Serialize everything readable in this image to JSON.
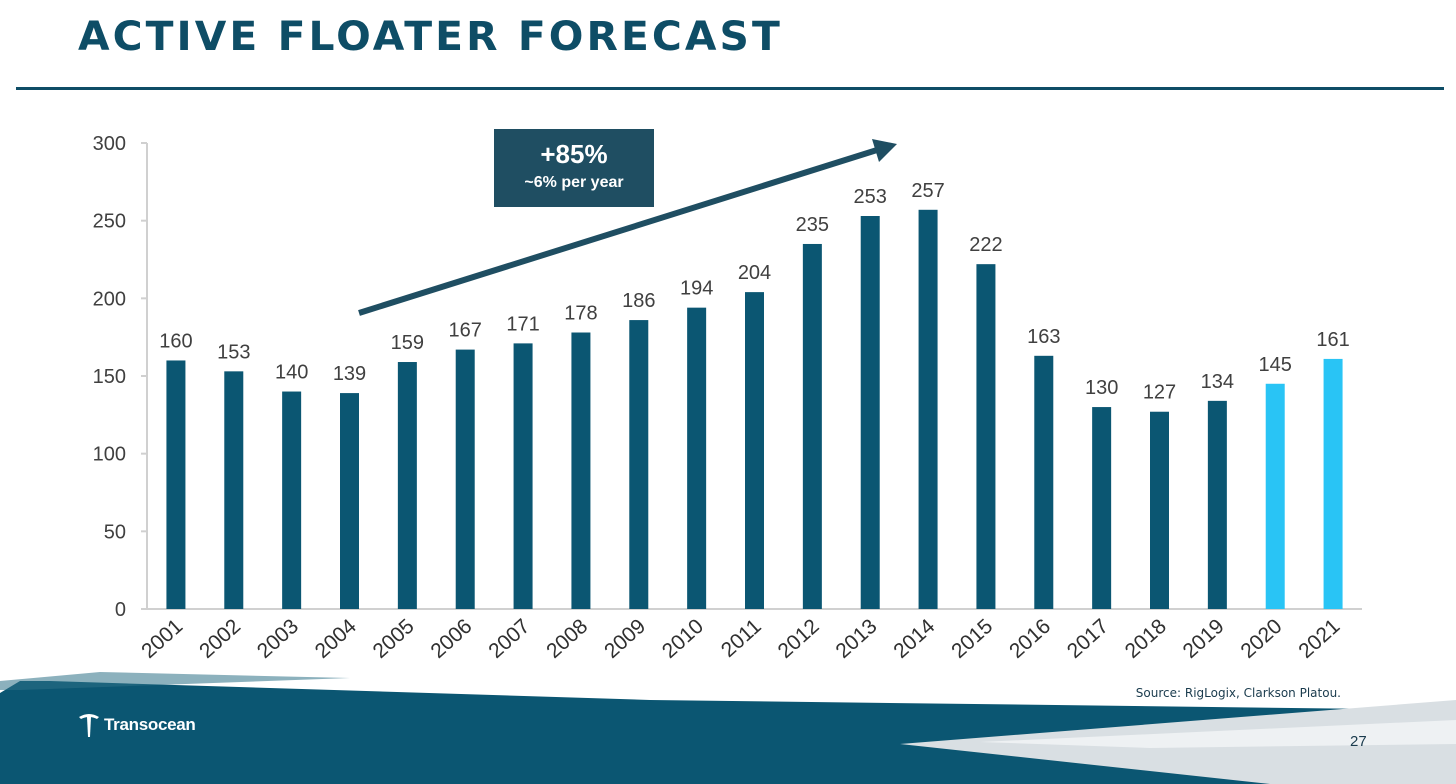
{
  "title": "ACTIVE FLOATER FORECAST",
  "callout": {
    "big": "+85%",
    "small": "~6%  per year"
  },
  "source": "Source: RigLogix, Clarkson Platou.",
  "page_number": "27",
  "logo_text": "Transocean",
  "colors": {
    "bar": "#0b5672",
    "forecast": "#29c4f5",
    "title": "#0e4d66",
    "footer": "#0b5672"
  },
  "chart_data": {
    "type": "bar",
    "categories": [
      "2001",
      "2002",
      "2003",
      "2004",
      "2005",
      "2006",
      "2007",
      "2008",
      "2009",
      "2010",
      "2011",
      "2012",
      "2013",
      "2014",
      "2015",
      "2016",
      "2017",
      "2018",
      "2019",
      "2020",
      "2021"
    ],
    "values": [
      160,
      153,
      140,
      139,
      159,
      167,
      171,
      178,
      186,
      194,
      204,
      235,
      253,
      257,
      222,
      163,
      130,
      127,
      134,
      145,
      161
    ],
    "forecast_categories": [
      "2020",
      "2021"
    ],
    "ylim": [
      0,
      300
    ],
    "yticks": [
      0,
      50,
      100,
      150,
      200,
      250,
      300
    ],
    "grid": false,
    "data_labels": true
  }
}
